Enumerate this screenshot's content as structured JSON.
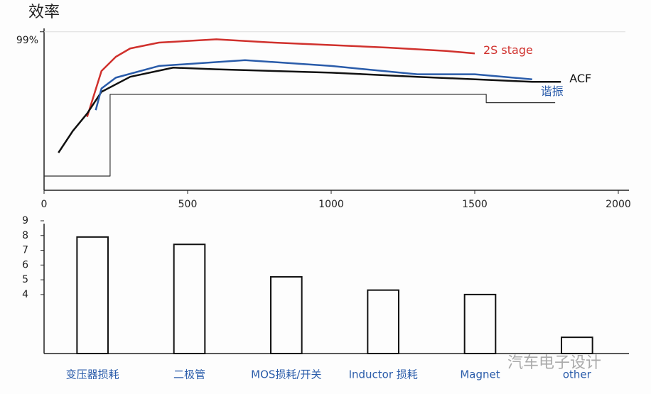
{
  "chart_data": [
    {
      "type": "line",
      "y_label": "效率",
      "xlim": [
        0,
        2000
      ],
      "xticks": [
        0,
        500,
        1000,
        1500,
        2000
      ],
      "ylim": [
        80,
        100
      ],
      "yticks": [
        {
          "value": 99,
          "label": "99%"
        }
      ],
      "series": [
        {
          "name": "2S stage",
          "color": "#d0312d",
          "x": [
            150,
            200,
            250,
            300,
            400,
            600,
            800,
            1000,
            1200,
            1400,
            1500
          ],
          "values": [
            88.8,
            94.3,
            96.0,
            97.0,
            97.7,
            98.1,
            97.7,
            97.4,
            97.1,
            96.7,
            96.4
          ]
        },
        {
          "name": "ACF",
          "color": "#111111",
          "x": [
            50,
            100,
            150,
            200,
            300,
            450,
            600,
            1000,
            1300,
            1700,
            1800
          ],
          "values": [
            84.5,
            87.1,
            89.2,
            91.8,
            93.6,
            94.7,
            94.5,
            94.1,
            93.6,
            93.0,
            93.0
          ]
        },
        {
          "name": "谐振",
          "color": "#2a5caa",
          "x": [
            180,
            200,
            250,
            400,
            700,
            1000,
            1300,
            1500,
            1700
          ],
          "values": [
            89.6,
            92.2,
            93.5,
            94.9,
            95.6,
            94.9,
            93.9,
            93.9,
            93.3
          ]
        },
        {
          "color": "#333333",
          "x": [
            0,
            230,
            230,
            1540,
            1540,
            1780
          ],
          "values": [
            81.7,
            81.7,
            91.5,
            91.5,
            90.5,
            90.5
          ]
        }
      ]
    },
    {
      "type": "bar",
      "categories": [
        "变压器损耗",
        "二极管",
        "MOS损耗/开关",
        "Inductor 损耗",
        "Magnet",
        "other"
      ],
      "values": [
        7.9,
        7.4,
        5.2,
        4.3,
        4.0,
        1.1
      ],
      "color": "#111111",
      "ylim": [
        0,
        9
      ],
      "yticks": [
        4,
        5,
        6,
        7,
        8,
        9
      ]
    }
  ],
  "watermark": "汽车电子设计"
}
